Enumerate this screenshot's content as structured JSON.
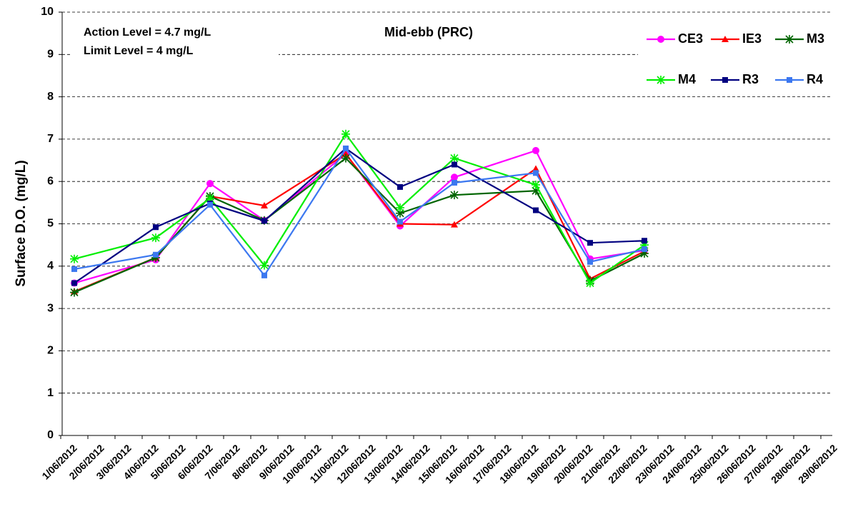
{
  "chart_data": {
    "type": "line",
    "title": "Mid-ebb (PRC)",
    "y_label": "Surface D.O. (mg/L)",
    "annotations": [
      "Action Level = 4.7 mg/L",
      "Limit Level = 4 mg/L"
    ],
    "x": [
      "1/06/2012",
      "4/06/2012",
      "6/06/2012",
      "8/06/2012",
      "11/06/2012",
      "13/06/2012",
      "15/06/2012",
      "18/06/2012",
      "20/06/2012",
      "22/06/2012"
    ],
    "xticks": [
      "1/06/2012",
      "2/06/2012",
      "3/06/2012",
      "4/06/2012",
      "5/06/2012",
      "6/06/2012",
      "7/06/2012",
      "8/06/2012",
      "9/06/2012",
      "10/06/2012",
      "11/06/2012",
      "12/06/2012",
      "13/06/2012",
      "14/06/2012",
      "15/06/2012",
      "16/06/2012",
      "17/06/2012",
      "18/06/2012",
      "19/06/2012",
      "20/06/2012",
      "21/06/2012",
      "22/06/2012",
      "23/06/2012",
      "24/06/2012",
      "25/06/2012",
      "26/06/2012",
      "27/06/2012",
      "28/06/2012",
      "29/06/2012"
    ],
    "ylim": [
      0,
      10
    ],
    "yticks": [
      0,
      1,
      2,
      3,
      4,
      5,
      6,
      7,
      8,
      9,
      10
    ],
    "grid": true,
    "legend": "top-right",
    "series": [
      {
        "name": "CE3",
        "color": "#ff00ff",
        "marker": "circle",
        "values": [
          3.6,
          4.15,
          5.95,
          5.08,
          6.65,
          4.95,
          6.1,
          6.73,
          4.17,
          4.37
        ]
      },
      {
        "name": "IE3",
        "color": "#ff0000",
        "marker": "triangle",
        "values": [
          3.4,
          4.2,
          5.65,
          5.43,
          6.65,
          5.0,
          4.98,
          6.3,
          3.7,
          4.35
        ]
      },
      {
        "name": "M3",
        "color": "#006400",
        "marker": "asterisk",
        "values": [
          3.38,
          4.2,
          5.65,
          5.08,
          6.55,
          5.25,
          5.68,
          5.78,
          3.65,
          4.3
        ]
      },
      {
        "name": "M4",
        "color": "#00ee00",
        "marker": "asterisk",
        "values": [
          4.17,
          4.67,
          5.6,
          4.02,
          7.12,
          5.38,
          6.55,
          5.92,
          3.6,
          4.5
        ]
      },
      {
        "name": "R3",
        "color": "#000080",
        "marker": "square",
        "values": [
          3.6,
          4.92,
          5.48,
          5.07,
          6.78,
          5.87,
          6.4,
          5.32,
          4.55,
          4.6
        ]
      },
      {
        "name": "R4",
        "color": "#3c78f0",
        "marker": "square",
        "values": [
          3.93,
          4.27,
          5.45,
          3.78,
          6.78,
          5.05,
          5.97,
          6.2,
          4.1,
          4.4
        ]
      }
    ]
  }
}
